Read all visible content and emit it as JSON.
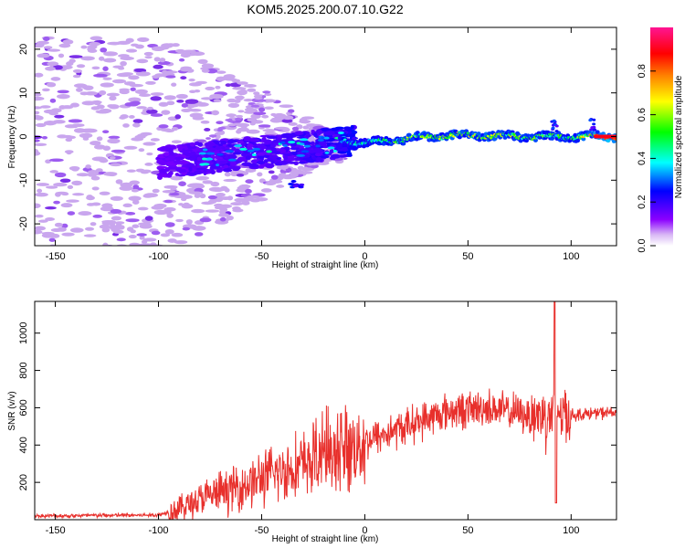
{
  "title": "KOM5.2025.200.07.10.G22",
  "colors": {
    "snr_line": "#e8302c",
    "axis": "#000000",
    "scatter_faint": "#c9a6ee"
  },
  "colorbar": {
    "label": "Normalized spectral amplitude",
    "ticks": [
      "0.0",
      "0.2",
      "0.4",
      "0.6",
      "0.8"
    ],
    "tick_values": [
      0.0,
      0.2,
      0.4,
      0.6,
      0.8
    ],
    "range": [
      0,
      1
    ],
    "colormap": [
      "#ffffff",
      "#8b00ff",
      "#0000ff",
      "#00ffff",
      "#00ff00",
      "#ffff00",
      "#ff8000",
      "#ff0000",
      "#ff1493"
    ]
  },
  "chart_data": [
    {
      "type": "heatmap",
      "title": "KOM5.2025.200.07.10.G22",
      "xlabel": "Height of straight line (km)",
      "ylabel": "Frequency (Hz)",
      "xlim": [
        -160,
        122
      ],
      "ylim": [
        -25,
        25
      ],
      "xticks": [
        -150,
        -100,
        -50,
        0,
        50,
        100
      ],
      "xtick_labels": [
        "-150",
        "-100",
        "-50",
        "0",
        "50",
        "100"
      ],
      "yticks": [
        -20,
        -10,
        0,
        10,
        20
      ],
      "ytick_labels": [
        "-20",
        "-10",
        "0",
        "10",
        "20"
      ],
      "ridge": {
        "description_points_x": [
          -100,
          -80,
          -60,
          -40,
          -20,
          -10,
          0,
          20,
          40,
          60,
          80,
          100,
          122
        ],
        "frequency_hz": [
          -6,
          -5,
          -4,
          -3,
          -2,
          -1,
          -1.5,
          -0.5,
          0.3,
          0.2,
          0,
          0,
          0
        ],
        "amplitude": [
          0.1,
          0.15,
          0.2,
          0.2,
          0.25,
          0.35,
          0.4,
          0.55,
          0.6,
          0.6,
          0.55,
          0.5,
          0.9
        ]
      }
    },
    {
      "type": "line",
      "xlabel": "Height of straight line (km)",
      "ylabel": "SNR (v/v)",
      "xlim": [
        -160,
        122
      ],
      "ylim": [
        0,
        1170
      ],
      "xticks": [
        -150,
        -100,
        -50,
        0,
        50,
        100
      ],
      "xtick_labels": [
        "-150",
        "-100",
        "-50",
        "0",
        "50",
        "100"
      ],
      "yticks": [
        200,
        400,
        600,
        800,
        1000
      ],
      "ytick_labels": [
        "200",
        "400",
        "600",
        "800",
        "1000"
      ],
      "trend_x": [
        -160,
        -100,
        -90,
        -80,
        -60,
        -40,
        -20,
        0,
        20,
        40,
        60,
        80,
        90,
        92,
        100,
        110,
        122
      ],
      "trend_y": [
        20,
        25,
        60,
        110,
        180,
        260,
        330,
        420,
        500,
        580,
        600,
        560,
        560,
        600,
        560,
        570,
        575
      ]
    }
  ]
}
